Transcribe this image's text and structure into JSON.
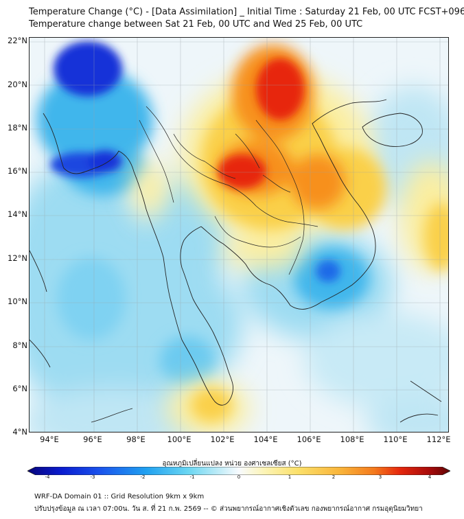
{
  "header": {
    "title_line1": "Temperature Change (°C) - [Data Assimilation] _ Initial Time : Saturday 21 Feb, 00 UTC FCST+096",
    "title_line2": "Temperature change between Sat 21 Feb, 00 UTC and Wed 25 Feb, 00 UTC"
  },
  "map": {
    "lat_labels": [
      "22°N",
      "20°N",
      "18°N",
      "16°N",
      "14°N",
      "12°N",
      "10°N",
      "8°N",
      "6°N",
      "4°N"
    ],
    "lon_labels": [
      "94°E",
      "96°E",
      "98°E",
      "100°E",
      "102°E",
      "104°E",
      "106°E",
      "108°E",
      "110°E",
      "112°E"
    ],
    "colors": {
      "neutral": "#eef6fa",
      "light_blue": "#9ddcf2",
      "mid_blue": "#3fb6ec",
      "deep_blue": "#1230d8",
      "light_yellow": "#fbeea0",
      "yellow": "#fad04a",
      "orange": "#f7901e",
      "red": "#e7250f",
      "border": "#222222"
    }
  },
  "colorbar": {
    "title": "อุณหภูมิเปลี่ยนแปลง หน่วย องศาเซลเซียส (°C)",
    "tick_labels": [
      "-4",
      "-3",
      "-2",
      "-1",
      "0",
      "1",
      "2",
      "3",
      "4"
    ],
    "colors": [
      "#08047a",
      "#0a1ccf",
      "#1a52ec",
      "#20a0f0",
      "#6ad6f2",
      "#c8eef8",
      "#f8fbff",
      "#fcf4b6",
      "#fbe06a",
      "#f9b43a",
      "#f47a1d",
      "#e5280d",
      "#a80b0b",
      "#600404"
    ]
  },
  "footer": {
    "line1": "WRF-DA Domain 01 :: Grid Resolution 9km x 9km",
    "line2": "ปรับปรุงข้อมูล ณ เวลา 07:00น. วัน ส. ที่ 21 ก.พ. 2569 -- © ส่วนพยากรณ์อากาศเชิงตัวเลข กองพยากรณ์อากาศ กรมอุตุนิยมวิทยา"
  }
}
